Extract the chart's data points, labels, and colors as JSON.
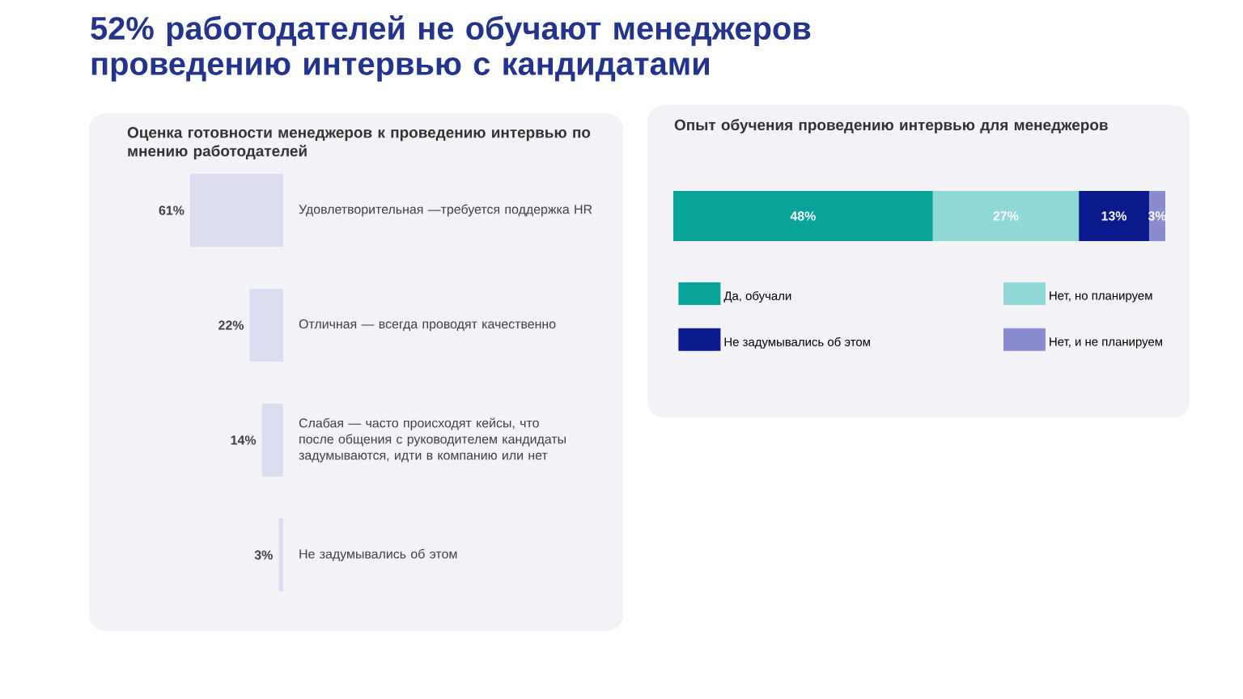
{
  "chart_data": [
    {
      "type": "bar",
      "orientation": "horizontal",
      "title": "52% работодателей не обучают менеджеров проведению интервью с кандидатами",
      "subtitle": "Оценка готовности менеджеров к проведению интервью по мнению работодателей",
      "categories": [
        "Удовлетворительная —требуется поддержка HR",
        "Отличная — всегда проводят качественно",
        "Слабая — часто происходят кейсы, что после общения с руководителем кандидаты задумываются, идти в компанию или нет",
        "Не задумывались об этом"
      ],
      "values": [
        61,
        22,
        14,
        3
      ],
      "value_labels": [
        "61%",
        "22%",
        "14%",
        "3%"
      ],
      "color": "#dcdcf0",
      "tick_labels": "y"
    },
    {
      "type": "bar",
      "orientation": "horizontal",
      "stacked": true,
      "title": "Опыт обучения проведению интервью для менеджеров",
      "categories": [
        null
      ],
      "tick_labels": false,
      "legend": "bottom",
      "series": [
        {
          "name": "Да, обучали",
          "color": "#0aa39c",
          "values": [
            48
          ],
          "value_labels": [
            "48%"
          ]
        },
        {
          "name": "Нет, но планируем",
          "color": "#8fd8d6",
          "values": [
            27
          ],
          "value_labels": [
            "27%"
          ]
        },
        {
          "name": "Не задумывались об этом",
          "color": "#0a1a8c",
          "values": [
            13
          ],
          "value_labels": [
            "13%"
          ]
        },
        {
          "name": "Нет, и не планируем",
          "color": "#8b8bd0",
          "values": [
            3
          ],
          "value_labels": [
            "3%"
          ]
        }
      ]
    }
  ]
}
